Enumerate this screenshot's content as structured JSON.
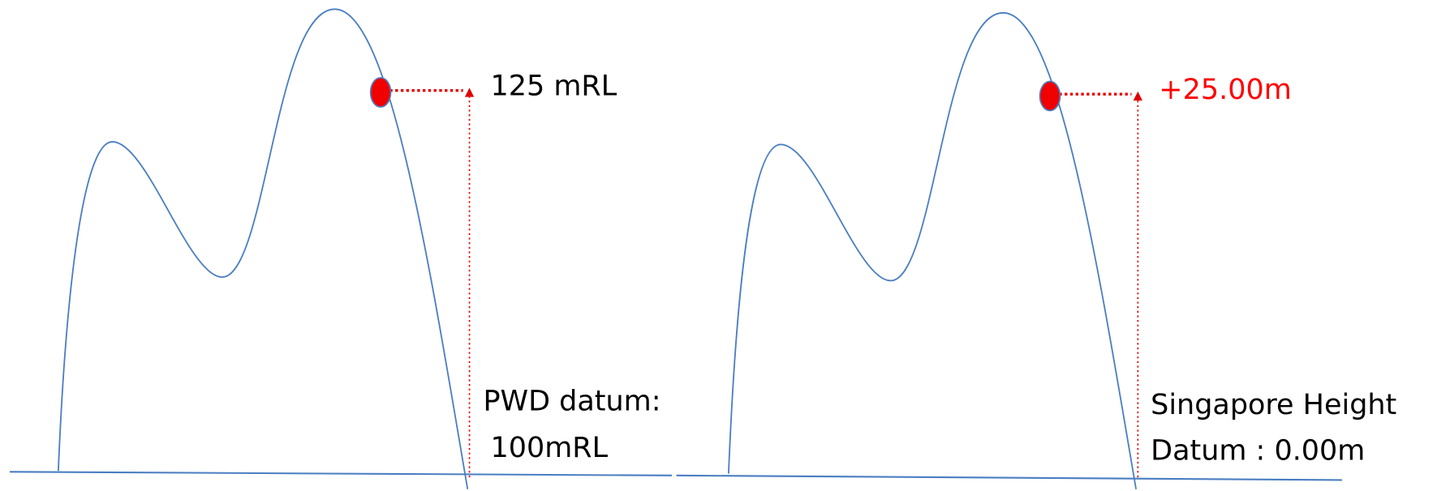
{
  "left": {
    "elevation_label": "125 mRL",
    "datum_line_1": "PWD datum:",
    "datum_line_2": "100mRL"
  },
  "right": {
    "elevation_label": "+25.00m",
    "datum_line_1": "Singapore Height",
    "datum_line_2": "Datum : 0.00m"
  }
}
